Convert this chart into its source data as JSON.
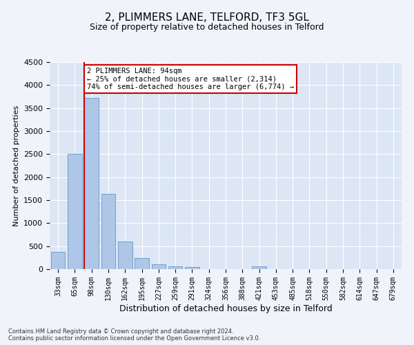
{
  "title": "2, PLIMMERS LANE, TELFORD, TF3 5GL",
  "subtitle": "Size of property relative to detached houses in Telford",
  "xlabel": "Distribution of detached houses by size in Telford",
  "ylabel": "Number of detached properties",
  "categories": [
    "33sqm",
    "65sqm",
    "98sqm",
    "130sqm",
    "162sqm",
    "195sqm",
    "227sqm",
    "259sqm",
    "291sqm",
    "324sqm",
    "356sqm",
    "388sqm",
    "421sqm",
    "453sqm",
    "485sqm",
    "518sqm",
    "550sqm",
    "582sqm",
    "614sqm",
    "647sqm",
    "679sqm"
  ],
  "values": [
    380,
    2500,
    3720,
    1640,
    600,
    240,
    110,
    65,
    50,
    0,
    0,
    0,
    60,
    0,
    0,
    0,
    0,
    0,
    0,
    0,
    0
  ],
  "bar_color": "#aec6e8",
  "bar_edgecolor": "#5588bb",
  "property_bin_index": 2,
  "annotation_line_color": "#cc0000",
  "annotation_box_color": "#cc0000",
  "annotation_line1": "2 PLIMMERS LANE: 94sqm",
  "annotation_line2": "← 25% of detached houses are smaller (2,314)",
  "annotation_line3": "74% of semi-detached houses are larger (6,774) →",
  "ylim": [
    0,
    4500
  ],
  "yticks": [
    0,
    500,
    1000,
    1500,
    2000,
    2500,
    3000,
    3500,
    4000,
    4500
  ],
  "footer_line1": "Contains HM Land Registry data © Crown copyright and database right 2024.",
  "footer_line2": "Contains public sector information licensed under the Open Government Licence v3.0.",
  "bg_color": "#f0f4fa",
  "plot_bg_color": "#dce6f5"
}
